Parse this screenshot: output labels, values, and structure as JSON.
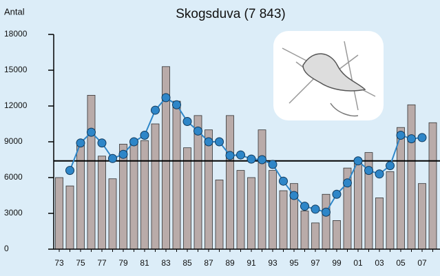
{
  "chart_data": {
    "type": "bar",
    "title": "Skogsduva (7 843)",
    "y_label": "Antal",
    "categories": [
      "73",
      null,
      "75",
      null,
      "77",
      null,
      "79",
      null,
      "81",
      null,
      "83",
      null,
      "85",
      null,
      "87",
      null,
      "89",
      null,
      "91",
      null,
      "93",
      null,
      "95",
      null,
      "97",
      null,
      "99",
      null,
      "01",
      null,
      "03",
      null,
      "05",
      null,
      "07",
      null
    ],
    "values": [
      6000,
      5300,
      8700,
      12900,
      7800,
      5900,
      8800,
      9000,
      9100,
      10500,
      15300,
      12400,
      8500,
      11200,
      10000,
      5800,
      11200,
      6600,
      6000,
      10000,
      6600,
      4900,
      5500,
      3200,
      2200,
      4600,
      2400,
      6800,
      7200,
      8100,
      4300,
      6500,
      10200,
      12100,
      5500,
      10600
    ],
    "color": "#b9aba9",
    "line_values": [
      null,
      6600,
      8900,
      9800,
      8900,
      7600,
      7950,
      9000,
      9550,
      11650,
      12700,
      12100,
      10700,
      9900,
      9000,
      9000,
      7850,
      7900,
      7550,
      7500,
      7100,
      5700,
      4500,
      3600,
      3350,
      3100,
      4600,
      5550,
      7400,
      6600,
      6300,
      7000,
      9550,
      9250,
      9350,
      null
    ],
    "line_color": "#2e86c8",
    "reference_line": 7400,
    "ylim": [
      0,
      18000
    ],
    "yticks": [
      0,
      3000,
      6000,
      9000,
      12000,
      15000,
      18000
    ]
  }
}
